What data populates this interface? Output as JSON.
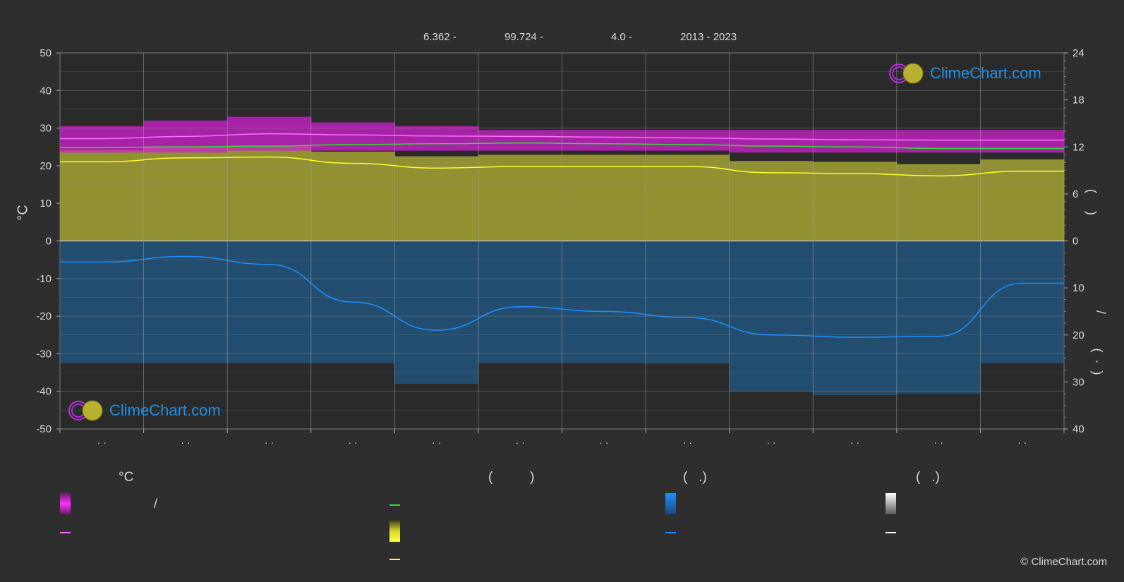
{
  "header": {
    "lat_label": "6.362 -",
    "lon_label": "99.724 -",
    "elev_label": "4.0 -",
    "years_label": "2013 - 2023"
  },
  "axes": {
    "left_label": "°C",
    "right_upper_label": "(     )",
    "right_lower_label": "(  ·  )",
    "right_slash": "/",
    "left_ticks": [
      "50",
      "40",
      "30",
      "20",
      "10",
      "0",
      "-10",
      "-20",
      "-30",
      "-40",
      "-50"
    ],
    "right_upper_ticks": [
      "24",
      "18",
      "12",
      "6",
      "0"
    ],
    "right_lower_ticks": [
      "10",
      "20",
      "30",
      "40"
    ],
    "month_labels": [
      "· ·",
      "· ·",
      "· ·",
      "· ·",
      "· ·",
      "· ·",
      "· ·",
      "· ·",
      "· ·",
      "· ·",
      "· ·",
      "· ·"
    ]
  },
  "legend": {
    "col1_head": "°C",
    "col2_head": "(          )",
    "col3_head": "(   .)",
    "col4_head": "(   .)",
    "col1_slash": "/"
  },
  "colors": {
    "background": "#2e2e2e",
    "temp_band": "#d020d0",
    "temp_line": "#ff70ff",
    "daylight_line": "#33dd33",
    "sunshine_band": "#9c9c33",
    "sunshine_line": "#ffff33",
    "rain_band": "#1e6aa8",
    "rain_line": "#1e90ff",
    "snow_line": "#ffffff",
    "logo_text": "#1e8fe6"
  },
  "logo_text": "ClimeChart.com",
  "copyright": "© ClimeChart.com",
  "chart_data": {
    "type": "area",
    "x": [
      "1",
      "2",
      "3",
      "4",
      "5",
      "6",
      "7",
      "8",
      "9",
      "10",
      "11",
      "12"
    ],
    "left_ylim": [
      -50,
      50
    ],
    "right_upper_ylim": [
      0,
      24
    ],
    "right_lower_ylim": [
      0,
      40
    ],
    "grid": true,
    "series": [
      {
        "id": "temp_max_band",
        "values": [
          30.5,
          32,
          33,
          31.5,
          30.5,
          29.5,
          29.5,
          29.5,
          29.5,
          29.5,
          29.5,
          29.5
        ]
      },
      {
        "id": "temp_min_band",
        "values": [
          23.5,
          23.5,
          24,
          24,
          24,
          24,
          24,
          24,
          23.5,
          23.5,
          23.5,
          23.5
        ]
      },
      {
        "id": "temp_mean",
        "values": [
          27.2,
          27.8,
          28.5,
          28.2,
          27.9,
          27.8,
          27.6,
          27.4,
          27.1,
          26.9,
          26.8,
          26.8
        ]
      },
      {
        "id": "daylight_hours",
        "values": [
          11.9,
          12.0,
          12.1,
          12.3,
          12.4,
          12.5,
          12.4,
          12.3,
          12.1,
          12.0,
          11.8,
          11.8
        ]
      },
      {
        "id": "sunshine_hours",
        "values": [
          10.1,
          10.6,
          10.7,
          9.9,
          9.3,
          9.5,
          9.5,
          9.5,
          8.7,
          8.6,
          8.3,
          8.9
        ]
      },
      {
        "id": "precipitation_mm",
        "values": [
          4.5,
          3.3,
          5.0,
          13.0,
          19.0,
          14.0,
          15.0,
          16.3,
          20.0,
          20.5,
          20.3,
          9.0
        ]
      },
      {
        "id": "snow_mm",
        "values": [
          0,
          0,
          0,
          0,
          0,
          0,
          0,
          0,
          0,
          0,
          0,
          0
        ]
      }
    ]
  }
}
